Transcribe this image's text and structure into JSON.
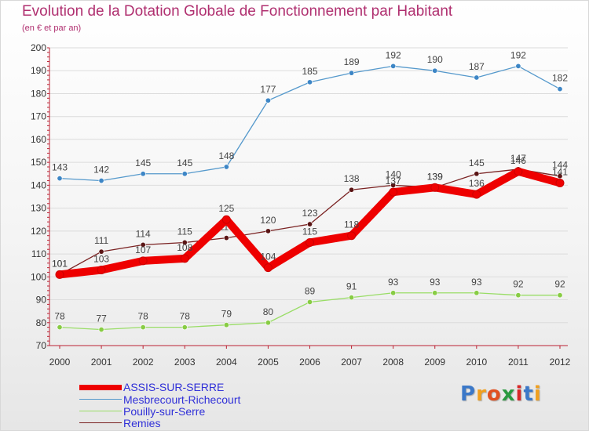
{
  "chart_data": {
    "type": "line",
    "title": "Evolution de la Dotation Globale de Fonctionnement par Habitant",
    "subtitle": "(en € et par an)",
    "xlabel": "",
    "ylabel": "",
    "x": [
      "2000",
      "2001",
      "2002",
      "2003",
      "2004",
      "2005",
      "2006",
      "2007",
      "2008",
      "2009",
      "2010",
      "2011",
      "2012"
    ],
    "ylim": [
      70,
      200
    ],
    "yticks": [
      70,
      80,
      90,
      100,
      110,
      120,
      130,
      140,
      150,
      160,
      170,
      180,
      190,
      200
    ],
    "grid": true,
    "legend_position": "bottom-left",
    "series": [
      {
        "name": "Mesbrecourt-Richecourt",
        "color": "#5599cc",
        "marker": "#3d86c6",
        "thick": false,
        "values": [
          143,
          142,
          145,
          145,
          148,
          177,
          185,
          189,
          192,
          190,
          187,
          192,
          182
        ]
      },
      {
        "name": "Pouilly-sur-Serre",
        "color": "#99dd66",
        "marker": "#88cc44",
        "thick": false,
        "values": [
          78,
          77,
          78,
          78,
          79,
          80,
          89,
          91,
          93,
          93,
          93,
          92,
          92
        ]
      },
      {
        "name": "Remies",
        "color": "#7a2222",
        "marker": "#5a1515",
        "thick": false,
        "values": [
          101,
          111,
          114,
          115,
          117,
          120,
          123,
          138,
          140,
          139,
          145,
          147,
          144
        ]
      },
      {
        "name": "ASSIS-SUR-SERRE",
        "color": "#ee0000",
        "marker": "#ee0000",
        "thick": true,
        "values": [
          101,
          103,
          107,
          108,
          125,
          104,
          115,
          118,
          137,
          139,
          136,
          146,
          141
        ]
      }
    ]
  },
  "legend": [
    "ASSIS-SUR-SERRE",
    "Mesbrecourt-Richecourt",
    "Pouilly-sur-Serre",
    "Remies"
  ],
  "logo": {
    "letters": [
      "P",
      "r",
      "o",
      "x",
      "i",
      "t",
      "i"
    ]
  },
  "colors": {
    "title": "#b03070",
    "legend_text": "#3030d8",
    "axis": "#bb2233"
  }
}
